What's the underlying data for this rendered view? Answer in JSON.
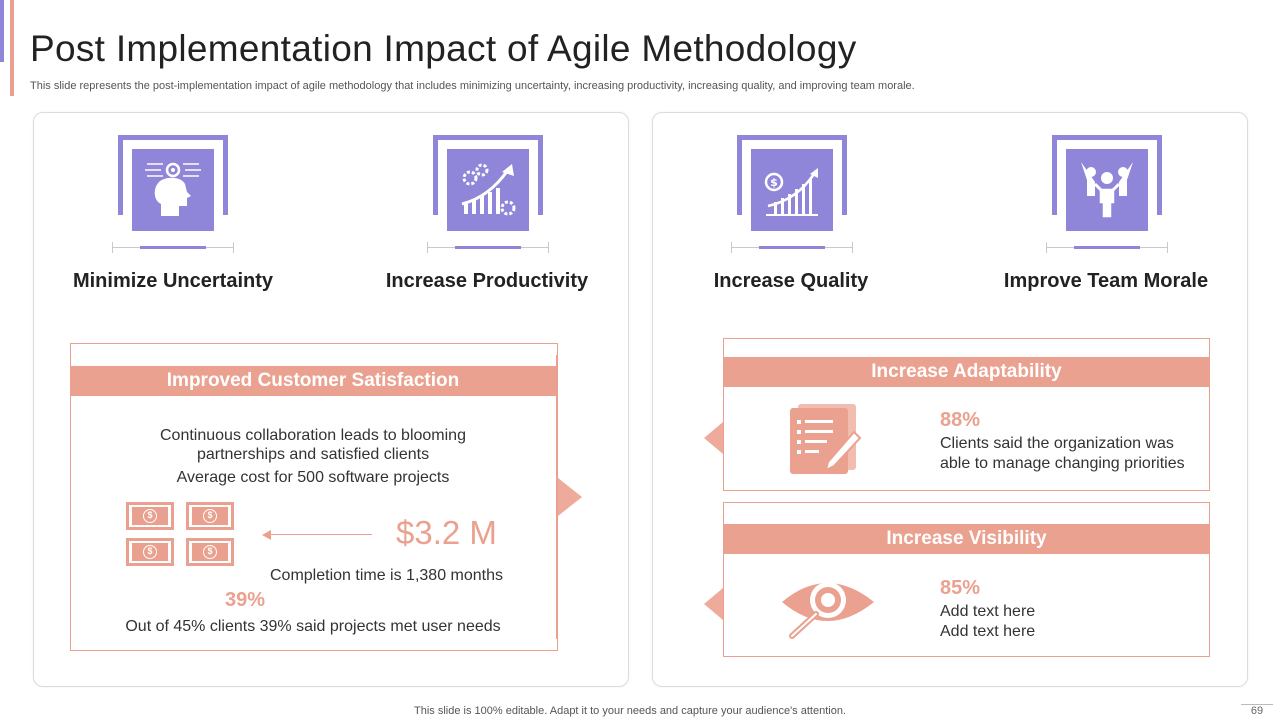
{
  "slide": {
    "title": "Post Implementation Impact of Agile Methodology",
    "subtitle": "This slide represents the post-implementation impact of agile methodology that includes minimizing uncertainty, increasing productivity, increasing quality, and improving team morale.",
    "footer": "This slide is 100% editable. Adapt it to your needs and capture your audience's attention.",
    "page_number": "69"
  },
  "features": [
    {
      "label": "Minimize Uncertainty",
      "icon": "head-gear-icon"
    },
    {
      "label": "Increase Productivity",
      "icon": "growth-chart-gears-icon"
    },
    {
      "label": "Increase Quality",
      "icon": "dollar-growth-icon"
    },
    {
      "label": "Improve Team Morale",
      "icon": "team-celebrate-icon"
    }
  ],
  "left_box": {
    "header": "Improved Customer Satisfaction",
    "line1": "Continuous  collaboration leads to blooming",
    "line2": "partnerships and satisfied clients",
    "line3": "Average cost for 500 software projects",
    "value": "$3.2 M",
    "completion": "Completion time is 1,380 months",
    "percent": "39%",
    "footer_line": "Out of 45% clients 39% said projects met user needs",
    "money_symbol": "$"
  },
  "right_boxes": [
    {
      "header": "Increase Adaptability",
      "percent": "88%",
      "line1": "Clients said the organization was",
      "line2": "able to manage changing priorities",
      "icon": "document-pencil-icon"
    },
    {
      "header": "Increase Visibility",
      "percent": "85%",
      "line1": "Add text here",
      "line2": "Add text here",
      "icon": "eye-magnifier-icon"
    }
  ],
  "colors": {
    "purple": "#8f86da",
    "salmon": "#eba190"
  }
}
